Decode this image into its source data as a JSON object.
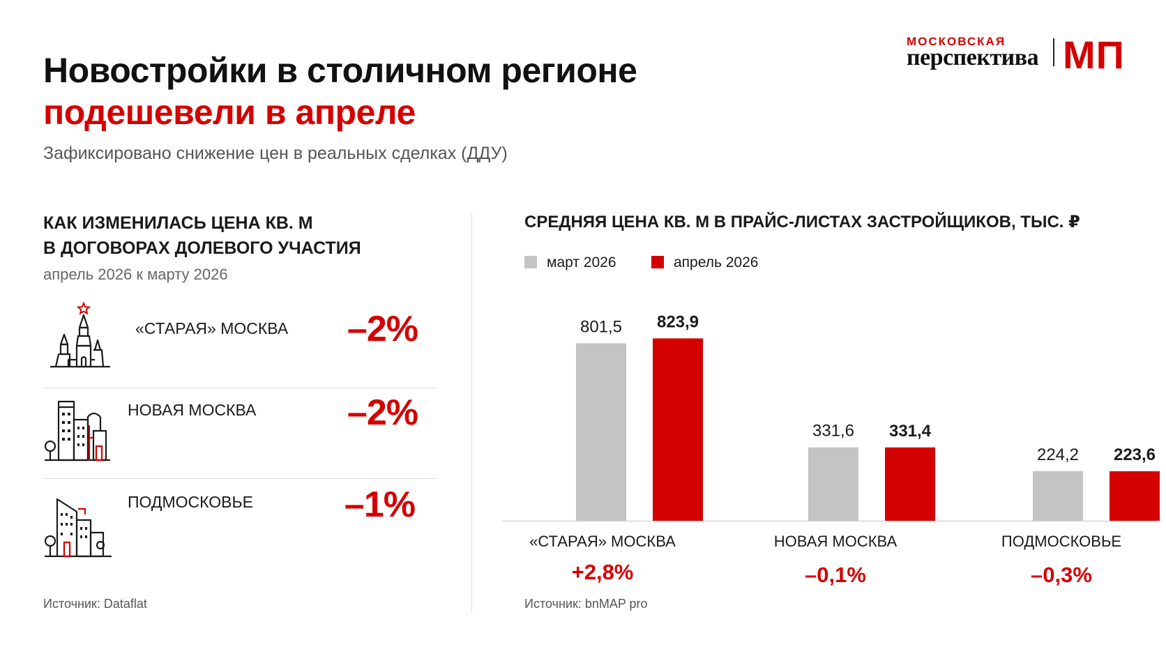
{
  "header": {
    "title_line1": "Новостройки в столичном регионе",
    "title_line2": "подешевели в апреле",
    "subtitle": "Зафиксировано снижение цен в реальных сделках (ДДУ)"
  },
  "logo": {
    "top": "МОСКОВСКАЯ",
    "bottom": "перспектива",
    "mark": "МП"
  },
  "left_panel": {
    "heading_line1": "КАК ИЗМЕНИЛАСЬ ЦЕНА КВ. М",
    "heading_line2": "В ДОГОВОРАХ ДОЛЕВОГО УЧАСТИЯ",
    "period": "апрель 2026 к марту 2026",
    "rows": [
      {
        "label": "«СТАРАЯ» МОСКВА",
        "value": "–2%",
        "icon": "kremlin-tower-icon"
      },
      {
        "label": "НОВАЯ МОСКВА",
        "value": "–2%",
        "icon": "city-buildings-icon"
      },
      {
        "label": "ПОДМОСКОВЬЕ",
        "value": "–1%",
        "icon": "suburb-buildings-icon"
      }
    ],
    "source": "Источник: Dataflat"
  },
  "right_panel": {
    "heading": "СРЕДНЯЯ ЦЕНА КВ. М  В ПРАЙС-ЛИСТАХ ЗАСТРОЙЩИКОВ, ТЫС. ₽",
    "changes": [
      "+2,8%",
      "–0,1%",
      "–0,3%"
    ],
    "source": "Источник: bnMAP pro"
  },
  "colors": {
    "accent": "#d40000",
    "march": "#c4c4c4",
    "april": "#d40000",
    "text": "#1a1a1a"
  },
  "chart_data": {
    "type": "bar",
    "title": "СРЕДНЯЯ ЦЕНА КВ. М  В ПРАЙС-ЛИСТАХ ЗАСТРОЙЩИКОВ, ТЫС. ₽",
    "categories": [
      "«СТАРАЯ» МОСКВА",
      "НОВАЯ МОСКВА",
      "ПОДМОСКОВЬЕ"
    ],
    "series": [
      {
        "name": "март 2026",
        "values": [
          801.5,
          331.6,
          224.2
        ],
        "labels": [
          "801,5",
          "331,6",
          "224,2"
        ],
        "color": "#c4c4c4"
      },
      {
        "name": "апрель 2026",
        "values": [
          823.9,
          331.4,
          223.6
        ],
        "labels": [
          "823,9",
          "331,4",
          "223,6"
        ],
        "color": "#d40000"
      }
    ],
    "xlabel": "",
    "ylabel": "",
    "ylim": [
      0,
      900
    ],
    "grid": false,
    "legend": "top-left"
  }
}
